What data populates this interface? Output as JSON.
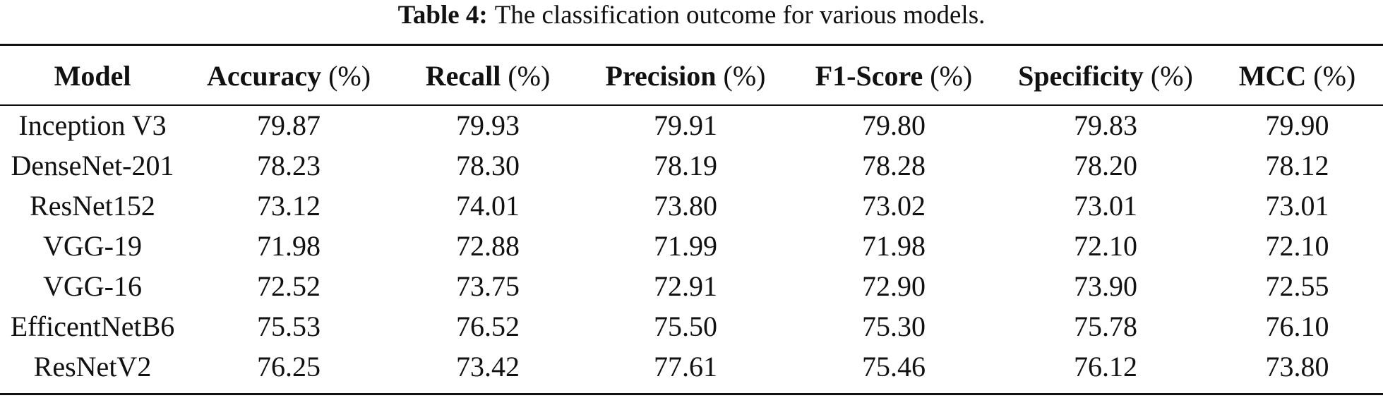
{
  "caption": {
    "label": "Table 4:",
    "text": "The classification outcome for various models."
  },
  "table": {
    "columns": [
      {
        "name": "Model",
        "unit": ""
      },
      {
        "name": "Accuracy",
        "unit": "(%)"
      },
      {
        "name": "Recall",
        "unit": "(%)"
      },
      {
        "name": "Precision",
        "unit": "(%)"
      },
      {
        "name": "F1-Score",
        "unit": "(%)"
      },
      {
        "name": "Specificity",
        "unit": "(%)"
      },
      {
        "name": "MCC",
        "unit": "(%)"
      }
    ],
    "rows": [
      [
        "Inception V3",
        "79.87",
        "79.93",
        "79.91",
        "79.80",
        "79.83",
        "79.90"
      ],
      [
        "DenseNet-201",
        "78.23",
        "78.30",
        "78.19",
        "78.28",
        "78.20",
        "78.12"
      ],
      [
        "ResNet152",
        "73.12",
        "74.01",
        "73.80",
        "73.02",
        "73.01",
        "73.01"
      ],
      [
        "VGG-19",
        "71.98",
        "72.88",
        "71.99",
        "71.98",
        "72.10",
        "72.10"
      ],
      [
        "VGG-16",
        "72.52",
        "73.75",
        "72.91",
        "72.90",
        "73.90",
        "72.55"
      ],
      [
        "EfficentNetB6",
        "75.53",
        "76.52",
        "75.50",
        "75.30",
        "75.78",
        "76.10"
      ],
      [
        "ResNetV2",
        "76.25",
        "73.42",
        "77.61",
        "75.46",
        "76.12",
        "73.80"
      ]
    ]
  }
}
